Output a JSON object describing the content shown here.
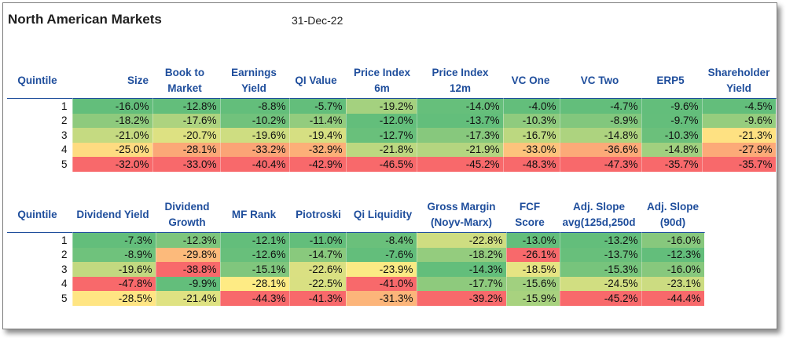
{
  "title": "North American Markets",
  "date": "31-Dec-22",
  "table1": {
    "headers": [
      "Quintile",
      "Size",
      "Book to Market",
      "Earnings Yield",
      "QI Value",
      "Price Index 6m",
      "Price Index 12m",
      "VC One",
      "VC Two",
      "ERP5",
      "Shareholder Yield"
    ],
    "rows": [
      {
        "q": "1",
        "values": [
          "-16.0%",
          "-12.8%",
          "-8.8%",
          "-5.7%",
          "-19.2%",
          "-14.0%",
          "-4.0%",
          "-4.7%",
          "-9.6%",
          "-4.5%"
        ]
      },
      {
        "q": "2",
        "values": [
          "-18.2%",
          "-17.6%",
          "-10.2%",
          "-11.4%",
          "-12.0%",
          "-13.7%",
          "-10.3%",
          "-8.9%",
          "-9.7%",
          "-9.6%"
        ]
      },
      {
        "q": "3",
        "values": [
          "-21.0%",
          "-20.7%",
          "-19.6%",
          "-19.4%",
          "-12.7%",
          "-17.3%",
          "-16.7%",
          "-14.8%",
          "-10.3%",
          "-21.3%"
        ]
      },
      {
        "q": "4",
        "values": [
          "-25.0%",
          "-28.1%",
          "-33.2%",
          "-32.9%",
          "-21.8%",
          "-21.9%",
          "-33.0%",
          "-36.6%",
          "-14.8%",
          "-27.9%"
        ]
      },
      {
        "q": "5",
        "values": [
          "-32.0%",
          "-33.0%",
          "-40.4%",
          "-42.9%",
          "-46.5%",
          "-45.2%",
          "-48.3%",
          "-47.3%",
          "-35.7%",
          "-35.7%"
        ]
      }
    ]
  },
  "table2": {
    "headers": [
      "Quintile",
      "Dividend Yield",
      "Dividend Growth",
      "MF Rank",
      "Piotroski",
      "Qi Liquidity",
      "Gross Margin (Noyv-Marx)",
      "FCF Score",
      "Adj. Slope avg(125d,250d",
      "Adj. Slope (90d)"
    ],
    "rows": [
      {
        "q": "1",
        "values": [
          "-7.3%",
          "-12.3%",
          "-12.1%",
          "-11.0%",
          "-8.4%",
          "-22.8%",
          "-13.0%",
          "-13.2%",
          "-16.0%"
        ]
      },
      {
        "q": "2",
        "values": [
          "-8.9%",
          "-29.8%",
          "-12.6%",
          "-14.7%",
          "-7.6%",
          "-18.2%",
          "-26.1%",
          "-13.7%",
          "-12.3%"
        ]
      },
      {
        "q": "3",
        "values": [
          "-19.6%",
          "-38.8%",
          "-15.1%",
          "-22.6%",
          "-23.9%",
          "-14.3%",
          "-18.5%",
          "-15.3%",
          "-16.0%"
        ]
      },
      {
        "q": "4",
        "values": [
          "-47.8%",
          "-9.9%",
          "-28.1%",
          "-22.5%",
          "-41.0%",
          "-17.7%",
          "-15.6%",
          "-24.5%",
          "-23.1%"
        ]
      },
      {
        "q": "5",
        "values": [
          "-28.5%",
          "-21.4%",
          "-44.3%",
          "-41.3%",
          "-31.3%",
          "-39.2%",
          "-15.9%",
          "-45.2%",
          "-44.4%"
        ]
      }
    ]
  },
  "colors": {
    "header_text": "#1f4e9c",
    "scale_good": "#63be7b",
    "scale_mid": "#ffeb84",
    "scale_bad": "#f8696b"
  }
}
